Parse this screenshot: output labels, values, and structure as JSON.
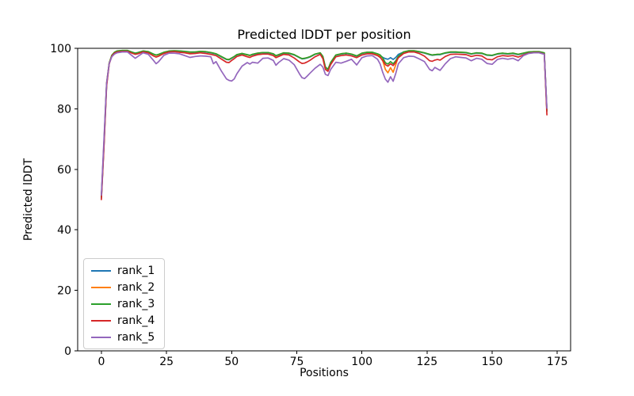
{
  "figure": {
    "background": "#ffffff",
    "text_color": "#000000",
    "axis_color": "#000000",
    "legend_border_color": "#cccccc"
  },
  "chart_data": {
    "type": "line",
    "title": "Predicted lDDT per position",
    "xlabel": "Positions",
    "ylabel": "Predicted lDDT",
    "xlim": [
      -9.1,
      180.1
    ],
    "ylim": [
      0,
      100
    ],
    "xticks": [
      0,
      25,
      50,
      75,
      100,
      125,
      150,
      175
    ],
    "yticks": [
      0,
      20,
      40,
      60,
      80,
      100
    ],
    "grid": false,
    "legend_position": "lower left",
    "x": [
      0,
      1,
      2,
      3,
      4,
      5,
      6,
      8,
      10,
      12,
      13,
      14,
      16,
      18,
      20,
      21,
      22,
      24,
      26,
      28,
      30,
      32,
      34,
      36,
      38,
      40,
      42,
      43,
      44,
      46,
      48,
      49,
      50,
      51,
      52,
      54,
      56,
      57,
      58,
      60,
      62,
      64,
      66,
      67,
      68,
      70,
      72,
      74,
      76,
      77,
      78,
      79,
      80,
      82,
      84,
      85,
      86,
      87,
      88,
      90,
      92,
      94,
      96,
      98,
      100,
      102,
      104,
      106,
      107,
      108,
      109,
      110,
      111,
      112,
      113,
      114,
      116,
      118,
      120,
      122,
      124,
      126,
      127,
      128,
      129,
      130,
      132,
      134,
      136,
      138,
      140,
      142,
      144,
      146,
      148,
      150,
      152,
      154,
      156,
      158,
      160,
      162,
      164,
      166,
      168,
      170,
      171
    ],
    "series": [
      {
        "name": "rank_1",
        "color": "#1f77b4",
        "values": [
          50.5,
          68,
          88,
          95,
          97.6,
          98.6,
          99,
          99.2,
          99.2,
          98.6,
          98.2,
          98.5,
          99,
          98.8,
          98,
          97.7,
          97.9,
          98.6,
          99,
          99.1,
          99,
          98.8,
          98.6,
          98.7,
          98.9,
          98.8,
          98.5,
          98.3,
          98.1,
          97.2,
          96.3,
          96.2,
          96.7,
          97.2,
          97.8,
          98.2,
          97.8,
          97.6,
          97.9,
          98.3,
          98.5,
          98.5,
          98.1,
          97.5,
          97.8,
          98.4,
          98.3,
          97.8,
          96.9,
          96.5,
          96.6,
          96.8,
          97.1,
          98,
          98.4,
          97.2,
          93.6,
          92.9,
          95.2,
          97.7,
          98.1,
          98.3,
          98,
          97.4,
          98.3,
          98.6,
          98.6,
          98.1,
          97.6,
          97,
          96.6,
          96.4,
          96.9,
          96.3,
          97,
          98,
          98.8,
          99.1,
          99.1,
          98.8,
          98.4,
          97.9,
          97.7,
          97.8,
          97.9,
          97.9,
          98.4,
          98.7,
          98.7,
          98.6,
          98.5,
          98.1,
          98.4,
          98.3,
          97.7,
          97.6,
          98.1,
          98.3,
          98.1,
          98.3,
          97.9,
          98.3,
          98.7,
          98.8,
          98.8,
          98.4,
          79.2
        ]
      },
      {
        "name": "rank_2",
        "color": "#ff7f0e",
        "values": [
          51,
          69,
          88.5,
          95.2,
          97.7,
          98.7,
          99.1,
          99.3,
          99.3,
          98.6,
          98.2,
          98.5,
          99.1,
          98.9,
          98,
          97.7,
          97.9,
          98.7,
          99.1,
          99.2,
          99.1,
          98.9,
          98.7,
          98.8,
          99,
          98.9,
          98.6,
          98.4,
          98.2,
          97.3,
          96.4,
          96.3,
          96.8,
          97.3,
          97.9,
          98.3,
          97.8,
          97.6,
          98,
          98.4,
          98.6,
          98.6,
          98.2,
          97.5,
          97.9,
          98.5,
          98.4,
          97.9,
          97,
          96.6,
          96.7,
          96.9,
          97.2,
          98.1,
          98.5,
          97.3,
          93.7,
          93,
          95.3,
          97.8,
          98.2,
          98.4,
          98.1,
          97.5,
          98.4,
          98.7,
          98.7,
          98,
          97.2,
          95.8,
          93,
          91.9,
          93.6,
          92.1,
          94.6,
          97.3,
          98.8,
          99.2,
          99.2,
          98.9,
          98.5,
          98,
          97.8,
          97.9,
          98,
          98,
          98.5,
          98.8,
          98.8,
          98.7,
          98.6,
          98.2,
          98.5,
          98.4,
          97.8,
          97.7,
          98.2,
          98.4,
          98.2,
          98.4,
          98,
          98.4,
          98.8,
          98.9,
          98.9,
          98.5,
          79.5
        ]
      },
      {
        "name": "rank_3",
        "color": "#2ca02c",
        "values": [
          50.8,
          68.5,
          88.2,
          95.1,
          97.7,
          98.7,
          99.1,
          99.3,
          99.3,
          98.7,
          98.4,
          98.6,
          99.1,
          98.9,
          98.1,
          97.8,
          98,
          98.7,
          99.1,
          99.2,
          99.1,
          99,
          98.8,
          98.8,
          99,
          98.9,
          98.6,
          98.4,
          98.2,
          97.3,
          96.4,
          96.3,
          96.8,
          97.3,
          97.9,
          98.3,
          97.9,
          97.7,
          98,
          98.4,
          98.6,
          98.6,
          98.2,
          97.6,
          97.9,
          98.5,
          98.4,
          97.9,
          97,
          96.6,
          96.7,
          96.9,
          97.2,
          98.1,
          98.5,
          97.3,
          93.8,
          93.1,
          95.3,
          97.8,
          98.2,
          98.4,
          98.1,
          97.5,
          98.4,
          98.7,
          98.7,
          98.2,
          97.8,
          96.8,
          95.2,
          94.8,
          95.6,
          94.9,
          95.9,
          97.4,
          98.8,
          99.2,
          99.2,
          98.9,
          98.5,
          98,
          97.8,
          97.9,
          98,
          98,
          98.5,
          98.8,
          98.8,
          98.7,
          98.6,
          98.2,
          98.5,
          98.4,
          97.8,
          97.7,
          98.2,
          98.4,
          98.2,
          98.4,
          98,
          98.4,
          98.8,
          98.9,
          98.9,
          98.5,
          79.4
        ]
      },
      {
        "name": "rank_4",
        "color": "#d62728",
        "values": [
          50,
          67.5,
          87.5,
          94.8,
          97.4,
          98.4,
          98.8,
          99,
          99,
          98.3,
          98,
          98.2,
          98.8,
          98.5,
          97.5,
          97.1,
          97.4,
          98.3,
          98.8,
          98.9,
          98.7,
          98.5,
          98.2,
          98.3,
          98.5,
          98.3,
          98,
          97.8,
          97.6,
          96.5,
          95.4,
          95.3,
          96,
          96.6,
          97.3,
          97.8,
          97.2,
          97,
          97.4,
          97.9,
          98.1,
          98.1,
          97.6,
          96.9,
          97.3,
          98,
          97.8,
          96.8,
          95.5,
          95,
          95.1,
          95.5,
          96,
          97.2,
          98,
          96.6,
          93,
          92.4,
          94.6,
          97.2,
          97.6,
          97.8,
          97.5,
          96.9,
          97.8,
          98.2,
          98.2,
          97.6,
          97,
          96,
          94.6,
          94.1,
          94.9,
          94.3,
          95.4,
          96.9,
          98.3,
          98.8,
          98.8,
          98.3,
          97.4,
          95.9,
          95.7,
          96.1,
          96.3,
          96.1,
          97.3,
          98,
          98.1,
          98,
          97.9,
          97.3,
          97.7,
          97.5,
          96.4,
          96.2,
          97.2,
          97.6,
          97.4,
          97.6,
          97.1,
          97.8,
          98.4,
          98.6,
          98.6,
          98.1,
          78
        ]
      },
      {
        "name": "rank_5",
        "color": "#9467bd",
        "values": [
          51.5,
          70,
          88.5,
          95,
          97.2,
          98.1,
          98.5,
          98.8,
          98.8,
          97.4,
          96.7,
          97.3,
          98.5,
          98,
          96,
          94.9,
          95.6,
          97.7,
          98.4,
          98.4,
          98.2,
          97.6,
          97,
          97.3,
          97.5,
          97.4,
          97.2,
          94.9,
          95.6,
          92.6,
          89.9,
          89.4,
          89.2,
          89.9,
          91.6,
          94.1,
          95.3,
          94.8,
          95.4,
          95.1,
          96.7,
          96.8,
          96,
          94.4,
          95.3,
          96.6,
          96.1,
          94.6,
          91.6,
          90.3,
          90,
          90.8,
          91.7,
          93.4,
          94.7,
          93.8,
          91.4,
          91,
          93,
          95.4,
          95.1,
          95.7,
          96.4,
          94.5,
          96.9,
          97.5,
          97.6,
          96.4,
          94.8,
          92,
          89.8,
          88.8,
          90.6,
          89.1,
          91.7,
          94.9,
          96.9,
          97.4,
          97.3,
          96.5,
          95.6,
          93,
          92.6,
          93.7,
          93.2,
          92.7,
          94.9,
          96.6,
          97.2,
          97,
          96.8,
          95.9,
          96.7,
          96.4,
          95,
          94.7,
          96.3,
          96.7,
          96.4,
          96.7,
          95.9,
          97.6,
          98.3,
          98.5,
          98.5,
          98,
          80.2
        ]
      }
    ]
  }
}
